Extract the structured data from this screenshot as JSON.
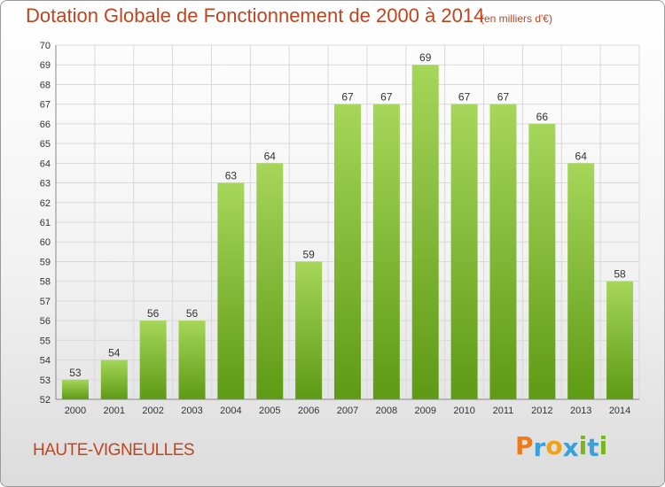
{
  "header": {
    "title": "Dotation Globale de Fonctionnement de 2000 à 2014",
    "subtitle": "(en milliers d'€)"
  },
  "footer": {
    "commune": "HAUTE-VIGNEULLES",
    "logo": "Proxiti"
  },
  "colors": {
    "title": "#c0451f",
    "bar_light": "#a6d65a",
    "bar_dark": "#5e9a14",
    "grid": "#d9d9d9",
    "logo_letters": [
      "#f07a1a",
      "#3aa0d8",
      "#f0a21a",
      "#3aa0d8",
      "#7ab51d",
      "#3aa0d8",
      "#7ab51d"
    ]
  },
  "chart_data": {
    "type": "bar",
    "title": "Dotation Globale de Fonctionnement de 2000 à 2014",
    "subtitle": "(en milliers d'€)",
    "categories": [
      "2000",
      "2001",
      "2002",
      "2003",
      "2004",
      "2005",
      "2006",
      "2007",
      "2008",
      "2009",
      "2010",
      "2011",
      "2012",
      "2013",
      "2014"
    ],
    "values": [
      53,
      54,
      56,
      56,
      63,
      64,
      59,
      67,
      67,
      69,
      67,
      67,
      66,
      64,
      58
    ],
    "ylim": [
      52,
      70
    ],
    "yticks": [
      "52",
      "53",
      "54",
      "55",
      "56",
      "57",
      "58",
      "59",
      "60",
      "61",
      "62",
      "63",
      "64",
      "65",
      "66",
      "67",
      "68",
      "69",
      "70"
    ],
    "grid": true,
    "legend": "none"
  }
}
